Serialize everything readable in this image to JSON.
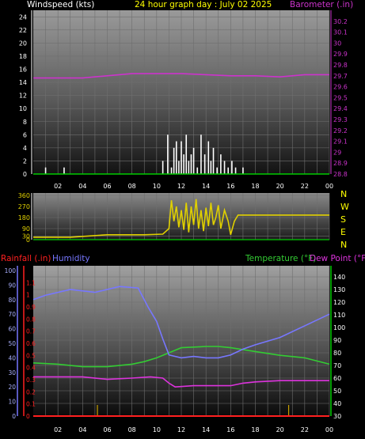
{
  "header": {
    "left": "Windspeed (kts)",
    "center": "24 hour graph day : July 02 2025",
    "right": "Barometer (.in)"
  },
  "mid": {
    "dir_labels": [
      "N",
      "W",
      "S",
      "E",
      "N"
    ]
  },
  "bottom_header": {
    "rain": "Rainfall (.in)",
    "hum": "Humidity",
    "temp": "Temperature (°F)",
    "dew": "Dew Point (°F)"
  },
  "colors": {
    "wind": "#ffffff",
    "baro": "#cc33cc",
    "dir": "#e0d000",
    "rain": "#ff2020",
    "hum": "#7777ff",
    "temp": "#33cc33",
    "dew": "#dd33dd",
    "axis_green": "#00cc00"
  },
  "chart_data": [
    {
      "type": "bar",
      "title": "24 hour graph day : July 02 2025",
      "xlabel": "",
      "ylabel": "Windspeed (kts)",
      "xticks": [
        "02",
        "04",
        "06",
        "08",
        "10",
        "12",
        "14",
        "16",
        "18",
        "20",
        "22",
        "00"
      ],
      "ylim": [
        0,
        25
      ],
      "yticks": [
        0,
        2,
        4,
        6,
        8,
        10,
        12,
        14,
        16,
        18,
        20,
        22,
        24
      ],
      "series": [
        {
          "name": "Windspeed (kts)",
          "x": [
            1.0,
            2.5,
            10.5,
            10.9,
            11.2,
            11.4,
            11.6,
            11.8,
            12.0,
            12.2,
            12.4,
            12.6,
            12.8,
            13.0,
            13.3,
            13.6,
            13.9,
            14.2,
            14.4,
            14.6,
            14.9,
            15.2,
            15.5,
            15.8,
            16.1,
            16.4,
            17.0
          ],
          "values": [
            1,
            1,
            2,
            6,
            1,
            4,
            5,
            2,
            5,
            3,
            6,
            2,
            3,
            4,
            1,
            6,
            3,
            5,
            2,
            4,
            1,
            3,
            2,
            1,
            2,
            1,
            1
          ]
        },
        {
          "name": "Barometer (.in)",
          "axis": "right",
          "ylim": [
            28.8,
            30.3
          ],
          "yticks": [
            28.8,
            28.9,
            29.0,
            29.1,
            29.2,
            29.3,
            29.4,
            29.5,
            29.6,
            29.7,
            29.8,
            29.9,
            30.0,
            30.1,
            30.2
          ],
          "x": [
            0,
            2,
            4,
            6,
            8,
            10,
            12,
            14,
            16,
            18,
            20,
            22,
            24
          ],
          "values": [
            29.68,
            29.68,
            29.68,
            29.7,
            29.72,
            29.72,
            29.72,
            29.71,
            29.7,
            29.7,
            29.69,
            29.71,
            29.71
          ]
        }
      ]
    },
    {
      "type": "line",
      "ylabel": "",
      "ylim": [
        0,
        360
      ],
      "yticks": [
        0,
        30,
        90,
        180,
        270,
        360
      ],
      "series": [
        {
          "name": "Wind direction",
          "x": [
            0,
            3,
            6,
            9,
            10.5,
            11.0,
            11.2,
            11.4,
            11.6,
            11.8,
            12.0,
            12.2,
            12.4,
            12.6,
            12.8,
            13.0,
            13.2,
            13.4,
            13.6,
            13.8,
            14.0,
            14.2,
            14.4,
            14.6,
            14.8,
            15.0,
            15.2,
            15.5,
            15.8,
            16.0,
            16.3,
            16.6,
            17.0,
            24
          ],
          "values": [
            20,
            20,
            40,
            40,
            45,
            90,
            320,
            150,
            270,
            100,
            240,
            80,
            300,
            60,
            270,
            120,
            330,
            90,
            240,
            70,
            260,
            110,
            300,
            120,
            180,
            280,
            90,
            240,
            150,
            40,
            150,
            200,
            200,
            200
          ]
        }
      ]
    },
    {
      "type": "line",
      "xticks": [
        "02",
        "04",
        "06",
        "08",
        "10",
        "12",
        "14",
        "16",
        "18",
        "20",
        "22",
        "00"
      ],
      "series": [
        {
          "name": "Rainfall (.in)",
          "axis": "left-outer",
          "ylim": [
            0,
            1.2
          ],
          "yticks": [
            0,
            0.1,
            0.2,
            0.3,
            0.4,
            0.5,
            0.6,
            0.7,
            0.8,
            0.9,
            1.0,
            1.1
          ],
          "x": [
            0,
            24
          ],
          "values": [
            0,
            0
          ]
        },
        {
          "name": "Humidity",
          "axis": "left-inner",
          "ylim": [
            0,
            100
          ],
          "yticks": [
            0,
            10,
            20,
            30,
            40,
            50,
            60,
            70,
            80,
            90,
            100
          ],
          "x": [
            0,
            1,
            3,
            5,
            7,
            8.5,
            9.3,
            10.0,
            10.5,
            11.0,
            12,
            13,
            14,
            15,
            16,
            17,
            18,
            20,
            22,
            24
          ],
          "values": [
            80,
            83,
            87,
            85,
            89,
            88,
            75,
            65,
            53,
            42,
            40,
            41,
            40,
            40,
            42,
            46,
            49,
            54,
            62,
            70
          ]
        },
        {
          "name": "Temperature (°F)",
          "axis": "right",
          "ylim": [
            30,
            145
          ],
          "yticks": [
            30,
            40,
            50,
            60,
            70,
            80,
            90,
            100,
            110,
            120,
            130,
            140
          ],
          "x": [
            0,
            2,
            4,
            6,
            8,
            9,
            10,
            11,
            12,
            14,
            15,
            16,
            18,
            20,
            22,
            24
          ],
          "values": [
            72,
            71,
            69,
            69,
            71,
            73,
            76,
            80,
            84,
            85,
            85,
            84,
            81,
            78,
            76,
            71
          ]
        },
        {
          "name": "Dew Point (°F)",
          "axis": "right",
          "x": [
            0,
            2,
            4,
            6,
            8,
            9.5,
            10.5,
            11.0,
            11.5,
            13,
            15,
            16,
            17,
            18,
            20,
            22,
            24
          ],
          "values": [
            61,
            61,
            61,
            59,
            60,
            61,
            60,
            56,
            53,
            54,
            54,
            54,
            56,
            57,
            58,
            58,
            58
          ]
        }
      ]
    }
  ]
}
